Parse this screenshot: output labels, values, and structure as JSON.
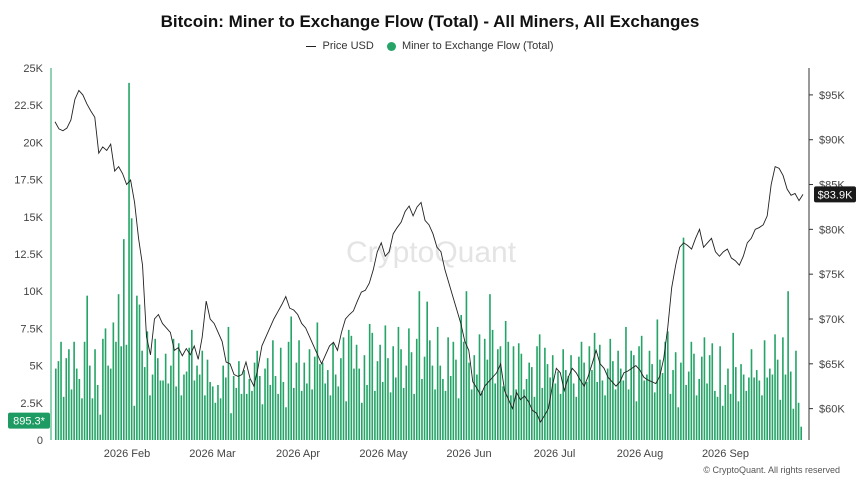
{
  "title": "Bitcoin: Miner to Exchange Flow (Total) - All Miners, All Exchanges",
  "legend": {
    "price_label": "Price USD",
    "flow_label": "Miner to Exchange Flow (Total)"
  },
  "watermark": "CryptoQuant",
  "copyright": "© CryptoQuant. All rights reserved",
  "colors": {
    "bar": "#26a468",
    "line": "#222222",
    "badge_flow": "#1e9b63",
    "badge_price": "#1a1a1a"
  },
  "chart_data": {
    "type": "bar",
    "title": "Bitcoin: Miner to Exchange Flow (Total) - All Miners, All Exchanges",
    "xlabel": "",
    "ylabel": "",
    "y2label": "",
    "x_ticks": [
      "2026 Feb",
      "2026 Mar",
      "2026 Apr",
      "2026 May",
      "2026 Jun",
      "2026 Jul",
      "2026 Aug",
      "2026 Sep"
    ],
    "y_left": {
      "ticks": [
        "0",
        "2.5K",
        "5K",
        "7.5K",
        "10K",
        "12.5K",
        "15K",
        "17.5K",
        "20K",
        "22.5K",
        "25K"
      ],
      "range": [
        0,
        25000
      ]
    },
    "y_right": {
      "ticks": [
        "$60K",
        "$65K",
        "$70K",
        "$75K",
        "$80K",
        "$85K",
        "$90K",
        "$95K"
      ],
      "range": [
        56500,
        98000
      ]
    },
    "grid": false,
    "legend_position": "top-center",
    "last_value_labels": {
      "flow": "895.3*",
      "price": "$83.9K"
    },
    "series": [
      {
        "name": "Miner to Exchange Flow (Total)",
        "type": "bar",
        "axis": "left",
        "values": [
          4800,
          5300,
          6600,
          2900,
          5500,
          6100,
          3400,
          6600,
          4800,
          4100,
          2800,
          6600,
          9700,
          5000,
          2800,
          6100,
          3700,
          1700,
          6800,
          7500,
          5000,
          4800,
          7900,
          6600,
          9800,
          6300,
          13500,
          6400,
          24000,
          14900,
          2300,
          9700,
          9100,
          6000,
          4900,
          7300,
          3000,
          4400,
          6800,
          5500,
          4000,
          4000,
          5800,
          3800,
          5000,
          6800,
          3600,
          6500,
          3000,
          4400,
          4600,
          6200,
          7400,
          4000,
          5000,
          4400,
          6000,
          3000,
          5400,
          3900,
          3600,
          2500,
          3700,
          2800,
          5000,
          4200,
          7600,
          1800,
          4300,
          3500,
          5300,
          3100,
          4700,
          3100,
          4100,
          3300,
          5200,
          6000,
          4300,
          2400,
          4800,
          5500,
          3700,
          6700,
          4300,
          3100,
          6200,
          3900,
          2200,
          6600,
          8300,
          3500,
          5200,
          6700,
          3300,
          5200,
          3800,
          6100,
          3400,
          5600,
          7900,
          5100,
          5200,
          3800,
          4700,
          3000,
          6500,
          4400,
          3600,
          5500,
          6900,
          2600,
          7400,
          7000,
          4800,
          6400,
          4800,
          2500,
          5700,
          3700,
          7800,
          7200,
          3300,
          5300,
          6400,
          3900,
          7700,
          5500,
          3200,
          6300,
          4200,
          7600,
          6100,
          3500,
          5000,
          7500,
          5900,
          3100,
          6800,
          10000,
          4100,
          5600,
          9300,
          6700,
          5000,
          3400,
          7600,
          5000,
          4100,
          3300,
          6900,
          4300,
          6600,
          5400,
          2800,
          8400,
          6600,
          10000,
          5200,
          3400,
          5700,
          4400,
          7100,
          3300,
          6800,
          5400,
          9800,
          7400,
          3800,
          6100,
          6300,
          3600,
          8000,
          6600,
          3000,
          6300,
          3400,
          6500,
          5800,
          3400,
          4100,
          5200,
          4900,
          2900,
          6300,
          7100,
          3500,
          6200,
          5100,
          4200,
          5700,
          3800,
          4600,
          3100,
          6100,
          4700,
          4300,
          5700,
          3800,
          2900,
          5600,
          6600,
          5200,
          3900,
          6300,
          4700,
          7200,
          3900,
          6400,
          4000,
          3000,
          4800,
          6800,
          5300,
          3400,
          6000,
          4800,
          4000,
          7600,
          3400,
          6000,
          5700,
          2600,
          6300,
          7000,
          4000,
          4400,
          6000,
          5100,
          3200,
          8100,
          5400,
          4500,
          6600,
          7300,
          3100,
          4700,
          5900,
          2200,
          5200,
          13600,
          3700,
          4600,
          6600,
          5800,
          3000,
          4100,
          5600,
          6900,
          3800,
          5700,
          6500,
          3300,
          2900,
          6300,
          2300,
          3700,
          4800,
          3100,
          7200,
          4900,
          2600,
          5100,
          4400,
          3300,
          4200,
          6100,
          4200,
          4700,
          4000,
          3000,
          6700,
          4200,
          4800,
          4400,
          7100,
          5400,
          2700,
          6900,
          4400,
          10000,
          4600,
          2100,
          6000,
          2500,
          895.3
        ]
      },
      {
        "name": "Price USD",
        "type": "line",
        "axis": "right",
        "values": [
          92000,
          91200,
          91000,
          91300,
          92200,
          94500,
          95500,
          95000,
          94000,
          93200,
          92500,
          88500,
          89200,
          88800,
          89500,
          86500,
          87000,
          86200,
          85000,
          85500,
          83000,
          79000,
          76000,
          68000,
          66000,
          70000,
          70500,
          69500,
          69000,
          68500,
          66500,
          66800,
          65900,
          66700,
          66000,
          67000,
          65500,
          68000,
          72000,
          70000,
          69500,
          68500,
          67500,
          65200,
          65000,
          63800,
          63600,
          63800,
          65200,
          63400,
          62500,
          64500,
          67000,
          68000,
          69000,
          70000,
          70800,
          71600,
          72500,
          71200,
          71000,
          70500,
          69500,
          69000,
          68000,
          67000,
          66000,
          65000,
          66000,
          67000,
          67400,
          66500,
          68500,
          70000,
          70500,
          70900,
          72000,
          73000,
          73200,
          74000,
          75500,
          77500,
          78500,
          77000,
          77500,
          79500,
          80200,
          80800,
          82000,
          82600,
          81500,
          82500,
          83000,
          81000,
          80500,
          79500,
          78000,
          77500,
          75500,
          74000,
          72500,
          71000,
          69500,
          67500,
          66500,
          63000,
          62300,
          61500,
          62500,
          63000,
          63500,
          64000,
          65000,
          62000,
          61000,
          60000,
          61800,
          61000,
          61400,
          60800,
          59800,
          59500,
          58500,
          59200,
          60000,
          62500,
          64500,
          64000,
          62000,
          63500,
          64500,
          64000,
          63200,
          62500,
          63600,
          65000,
          66500,
          65000,
          64500,
          63500,
          63000,
          62500,
          63000,
          64000,
          64200,
          64500,
          64800,
          64300,
          63500,
          63200,
          63000,
          62800,
          63600,
          65600,
          69000,
          73500,
          76000,
          78000,
          78500,
          78200,
          77800,
          79000,
          80000,
          78000,
          78500,
          79000,
          77500,
          77000,
          77500,
          77800,
          76800,
          76500,
          76000,
          77000,
          78500,
          79000,
          80000,
          80200,
          80500,
          81500,
          85000,
          87000,
          86800,
          86000,
          84500,
          83800,
          84000,
          83200,
          83900
        ]
      }
    ]
  }
}
